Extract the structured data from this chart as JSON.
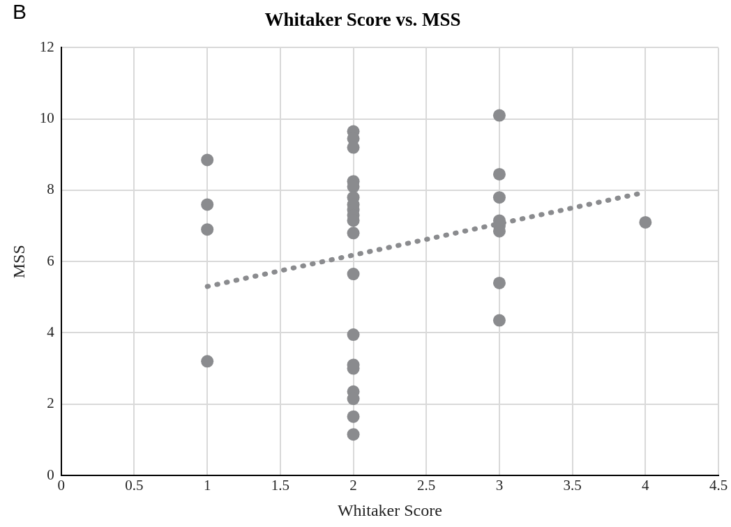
{
  "chart_data": {
    "type": "scatter",
    "title": "Whitaker Score vs. MSS",
    "xlabel": "Whitaker Score",
    "ylabel": "MSS",
    "annotations": [
      "B"
    ],
    "xlim": [
      0,
      4.5
    ],
    "xticks": [
      0,
      0.5,
      1,
      1.5,
      2,
      2.5,
      3,
      3.5,
      4,
      4.5
    ],
    "ylim": [
      0,
      12
    ],
    "yticks": [
      0,
      2,
      4,
      6,
      8,
      10,
      12
    ],
    "grid": true,
    "legend": false,
    "marker": "circle",
    "series": [
      {
        "type": "scatter",
        "color": "#8a8b8e",
        "x": [
          1,
          1,
          1,
          1,
          2,
          2,
          2,
          2,
          2,
          2,
          2,
          2,
          2,
          2,
          2,
          2,
          2,
          2,
          2,
          2,
          2,
          2,
          2,
          3,
          3,
          3,
          3,
          3,
          3,
          3,
          3,
          4
        ],
        "values": [
          8.85,
          7.6,
          6.9,
          3.2,
          9.65,
          9.45,
          9.2,
          8.25,
          8.1,
          7.8,
          7.6,
          7.45,
          7.3,
          7.15,
          6.8,
          5.65,
          3.95,
          3.1,
          3.0,
          2.35,
          2.15,
          1.65,
          1.15,
          10.1,
          8.45,
          7.8,
          7.15,
          7.0,
          6.85,
          5.4,
          4.35,
          7.1
        ]
      },
      {
        "type": "line",
        "color": "#8a8b8e",
        "line_style": "dotted",
        "marker": "none",
        "x": [
          1,
          3.95
        ],
        "values": [
          5.3,
          7.9
        ]
      }
    ]
  }
}
